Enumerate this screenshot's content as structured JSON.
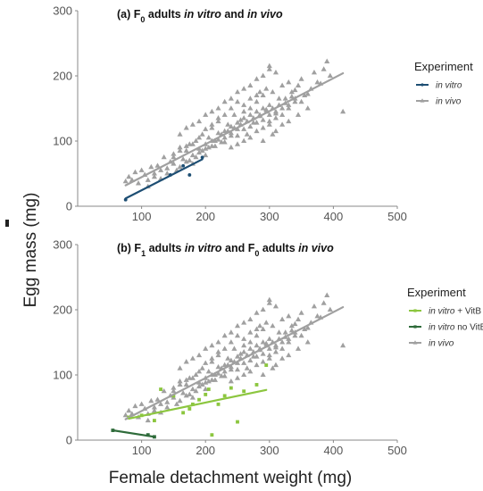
{
  "figure": {
    "ylabel": "Egg mass (mg)",
    "xlabel": "Female detachment weight (mg)"
  },
  "colors": {
    "in_vivo": "#a0a0a0",
    "in_vitro": "#1d4e73",
    "in_vitro_vitb": "#8cc63f",
    "in_vitro_no_vitb": "#2e6b3a"
  },
  "chart_data": [
    {
      "type": "scatter",
      "panel": "a",
      "title_parts": [
        {
          "text": "(a) F",
          "italic": false
        },
        {
          "text": "0",
          "italic": false,
          "sub": true
        },
        {
          "text": " adults ",
          "italic": false
        },
        {
          "text": "in vitro",
          "italic": true
        },
        {
          "text": " and ",
          "italic": false
        },
        {
          "text": "in vivo",
          "italic": true
        }
      ],
      "xlim": [
        0,
        500
      ],
      "ylim": [
        0,
        300
      ],
      "xticks": [
        100,
        200,
        300,
        400,
        500
      ],
      "yticks": [
        0,
        100,
        200,
        300
      ],
      "legend": {
        "title": "Experiment",
        "position": "right",
        "entries": [
          {
            "label": "in vitro",
            "italic_part": "in vitro",
            "rest": "",
            "color": "#1d4e73",
            "marker": "circle"
          },
          {
            "label": "in vivo",
            "italic_part": "in vivo",
            "rest": "",
            "color": "#a0a0a0",
            "marker": "triangle"
          }
        ]
      },
      "series": [
        {
          "name": "in vivo",
          "marker": "triangle",
          "color": "#a0a0a0",
          "points": [
            [
              75,
              38
            ],
            [
              80,
              45
            ],
            [
              85,
              40
            ],
            [
              90,
              52
            ],
            [
              95,
              35
            ],
            [
              100,
              55
            ],
            [
              105,
              48
            ],
            [
              110,
              30
            ],
            [
              115,
              60
            ],
            [
              120,
              50
            ],
            [
              125,
              62
            ],
            [
              130,
              42
            ],
            [
              135,
              75
            ],
            [
              140,
              58
            ],
            [
              145,
              68
            ],
            [
              150,
              80
            ],
            [
              155,
              55
            ],
            [
              160,
              90
            ],
            [
              165,
              72
            ],
            [
              170,
              85
            ],
            [
              175,
              95
            ],
            [
              180,
              65
            ],
            [
              185,
              100
            ],
            [
              190,
              88
            ],
            [
              195,
              110
            ],
            [
              200,
              78
            ],
            [
              205,
              105
            ],
            [
              210,
              120
            ],
            [
              215,
              92
            ],
            [
              220,
              130
            ],
            [
              225,
              98
            ],
            [
              230,
              115
            ],
            [
              235,
              125
            ],
            [
              240,
              108
            ],
            [
              245,
              140
            ],
            [
              250,
              118
            ],
            [
              255,
              132
            ],
            [
              260,
              145
            ],
            [
              265,
              110
            ],
            [
              270,
              150
            ],
            [
              275,
              128
            ],
            [
              280,
              160
            ],
            [
              285,
              138
            ],
            [
              290,
              170
            ],
            [
              295,
              148
            ],
            [
              300,
              155
            ],
            [
              305,
              175
            ],
            [
              310,
              142
            ],
            [
              315,
              165
            ],
            [
              320,
              185
            ],
            [
              325,
              158
            ],
            [
              330,
              190
            ],
            [
              335,
              168
            ],
            [
              340,
              178
            ],
            [
              350,
              195
            ],
            [
              360,
              172
            ],
            [
              370,
              205
            ],
            [
              380,
              188
            ],
            [
              390,
              222
            ],
            [
              395,
              200
            ],
            [
              160,
              110
            ],
            [
              170,
              120
            ],
            [
              180,
              125
            ],
            [
              190,
              130
            ],
            [
              200,
              140
            ],
            [
              210,
              145
            ],
            [
              220,
              150
            ],
            [
              230,
              160
            ],
            [
              240,
              165
            ],
            [
              250,
              175
            ],
            [
              260,
              180
            ],
            [
              270,
              185
            ],
            [
              280,
              195
            ],
            [
              290,
              200
            ],
            [
              300,
              210
            ],
            [
              310,
              205
            ],
            [
              200,
              95
            ],
            [
              210,
              100
            ],
            [
              220,
              112
            ],
            [
              230,
              105
            ],
            [
              240,
              122
            ],
            [
              250,
              128
            ],
            [
              260,
              135
            ],
            [
              270,
              140
            ],
            [
              280,
              145
            ],
            [
              290,
              150
            ],
            [
              300,
              130
            ],
            [
              310,
              135
            ],
            [
              320,
              140
            ],
            [
              330,
              150
            ],
            [
              340,
              160
            ],
            [
              240,
              90
            ],
            [
              250,
              95
            ],
            [
              260,
              100
            ],
            [
              270,
              105
            ],
            [
              280,
              115
            ],
            [
              290,
              120
            ],
            [
              300,
              125
            ],
            [
              310,
              115
            ],
            [
              175,
              70
            ],
            [
              185,
              75
            ],
            [
              195,
              85
            ],
            [
              205,
              90
            ],
            [
              215,
              100
            ],
            [
              225,
              110
            ],
            [
              235,
              115
            ],
            [
              245,
              120
            ],
            [
              255,
              125
            ],
            [
              265,
              130
            ],
            [
              275,
              135
            ],
            [
              285,
              140
            ],
            [
              295,
              145
            ],
            [
              305,
              150
            ],
            [
              315,
              155
            ],
            [
              325,
              165
            ],
            [
              335,
              175
            ],
            [
              345,
              185
            ],
            [
              355,
              170
            ],
            [
              365,
              180
            ],
            [
              375,
              190
            ],
            [
              385,
              210
            ],
            [
              415,
              145
            ],
            [
              360,
              150
            ],
            [
              345,
              140
            ],
            [
              330,
              130
            ],
            [
              320,
              125
            ],
            [
              305,
              110
            ],
            [
              290,
              100
            ],
            [
              150,
              65
            ],
            [
              140,
              50
            ],
            [
              130,
              55
            ],
            [
              120,
              45
            ],
            [
              110,
              40
            ],
            [
              160,
              60
            ],
            [
              170,
              68
            ],
            [
              180,
              78
            ],
            [
              190,
              82
            ],
            [
              200,
              88
            ],
            [
              210,
              92
            ],
            [
              220,
              102
            ],
            [
              230,
              98
            ],
            [
              240,
              112
            ],
            [
              250,
              108
            ],
            [
              260,
              118
            ],
            [
              270,
              122
            ],
            [
              280,
              128
            ],
            [
              290,
              132
            ],
            [
              300,
              140
            ],
            [
              310,
              145
            ],
            [
              320,
              150
            ],
            [
              330,
              155
            ],
            [
              340,
              165
            ],
            [
              350,
              160
            ],
            [
              250,
              160
            ],
            [
              260,
              155
            ],
            [
              270,
              165
            ],
            [
              280,
              170
            ],
            [
              240,
              150
            ],
            [
              230,
              140
            ],
            [
              220,
              135
            ],
            [
              210,
              125
            ],
            [
              200,
              118
            ],
            [
              190,
              105
            ],
            [
              180,
              95
            ],
            [
              170,
              92
            ],
            [
              160,
              85
            ],
            [
              150,
              75
            ],
            [
              300,
              215
            ],
            [
              295,
              180
            ],
            [
              285,
              175
            ]
          ],
          "fit": {
            "x": [
              75,
              415
            ],
            "y": [
              32,
              204
            ]
          }
        },
        {
          "name": "in vitro",
          "marker": "circle",
          "color": "#1d4e73",
          "points": [
            [
              75,
              10
            ],
            [
              145,
              48
            ],
            [
              165,
              62
            ],
            [
              175,
              48
            ],
            [
              195,
              75
            ]
          ],
          "fit": {
            "x": [
              75,
              195
            ],
            "y": [
              12,
              72
            ]
          }
        }
      ]
    },
    {
      "type": "scatter",
      "panel": "b",
      "title_parts": [
        {
          "text": "(b) F",
          "italic": false
        },
        {
          "text": "1",
          "italic": false,
          "sub": true
        },
        {
          "text": " adults ",
          "italic": false
        },
        {
          "text": "in vitro",
          "italic": true
        },
        {
          "text": " and F",
          "italic": false
        },
        {
          "text": "0",
          "italic": false,
          "sub": true
        },
        {
          "text": " adults ",
          "italic": false
        },
        {
          "text": "in vivo",
          "italic": true
        }
      ],
      "xlim": [
        0,
        500
      ],
      "ylim": [
        0,
        300
      ],
      "xticks": [
        100,
        200,
        300,
        400,
        500
      ],
      "yticks": [
        0,
        100,
        200,
        300
      ],
      "legend": {
        "title": "Experiment",
        "position": "right",
        "entries": [
          {
            "label": "in vitro + VitB",
            "italic_part": "in vitro",
            "rest": " + VitB",
            "color": "#8cc63f",
            "marker": "square"
          },
          {
            "label": "in vitro no VitB",
            "italic_part": "in vitro",
            "rest": " no VitB",
            "color": "#2e6b3a",
            "marker": "square"
          },
          {
            "label": "in vivo",
            "italic_part": "in vivo",
            "rest": "",
            "color": "#a0a0a0",
            "marker": "triangle"
          }
        ]
      },
      "series": [
        {
          "name": "in vivo",
          "marker": "triangle",
          "color": "#a0a0a0",
          "points": "same_as_panel_a",
          "fit": {
            "x": [
              75,
              415
            ],
            "y": [
              32,
              204
            ]
          }
        },
        {
          "name": "in vitro + VitB",
          "marker": "square",
          "color": "#8cc63f",
          "points": [
            [
              80,
              35
            ],
            [
              100,
              38
            ],
            [
              120,
              30
            ],
            [
              130,
              78
            ],
            [
              150,
              68
            ],
            [
              165,
              42
            ],
            [
              175,
              48
            ],
            [
              180,
              55
            ],
            [
              190,
              62
            ],
            [
              200,
              70
            ],
            [
              205,
              78
            ],
            [
              210,
              8
            ],
            [
              220,
              55
            ],
            [
              230,
              68
            ],
            [
              240,
              80
            ],
            [
              250,
              28
            ],
            [
              260,
              75
            ],
            [
              280,
              85
            ],
            [
              295,
              115
            ]
          ],
          "fit": {
            "x": [
              80,
              295
            ],
            "y": [
              33,
              77
            ]
          }
        },
        {
          "name": "in vitro no VitB",
          "marker": "square",
          "color": "#2e6b3a",
          "points": [
            [
              55,
              15
            ],
            [
              110,
              8
            ],
            [
              120,
              5
            ]
          ],
          "fit": {
            "x": [
              55,
              120
            ],
            "y": [
              15,
              5
            ]
          }
        }
      ]
    }
  ]
}
